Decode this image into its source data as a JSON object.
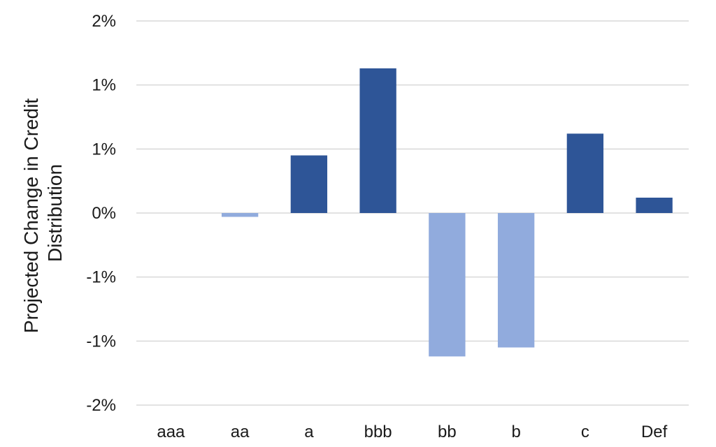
{
  "colors": {
    "positive_bar": "#2E5597",
    "negative_bar": "#91ABDD",
    "gridline": "#D9D9D9",
    "text": "#1a1a1a"
  },
  "chart_data": {
    "type": "bar",
    "title": "",
    "xlabel": "",
    "ylabel_lines": [
      "Projected Change in Credit",
      "Distribution"
    ],
    "categories": [
      "aaa",
      "aa",
      "a",
      "bbb",
      "bb",
      "b",
      "c",
      "Def"
    ],
    "values": [
      0.0,
      -0.03,
      0.45,
      1.13,
      -1.12,
      -1.05,
      0.62,
      0.12
    ],
    "ylim": [
      -1.5,
      1.5
    ],
    "ytick_values": [
      -1.5,
      -1.0,
      -0.5,
      0.0,
      0.5,
      1.0,
      1.5
    ],
    "ytick_labels": [
      "-2%",
      "-1%",
      "-1%",
      "0%",
      "1%",
      "1%",
      "2%"
    ],
    "grid": true,
    "legend": "none"
  }
}
